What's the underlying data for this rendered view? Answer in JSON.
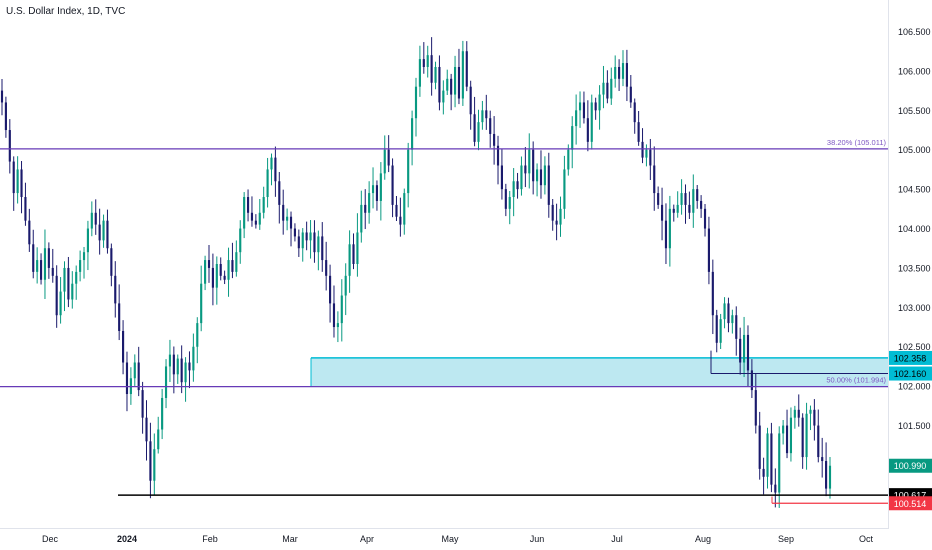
{
  "title": "U.S. Dollar Index, 1D, TVC",
  "chart_data": {
    "type": "candlestick",
    "symbol": "U.S. Dollar Index",
    "interval": "1D",
    "source": "TVC",
    "ylim": [
      100.2,
      106.9
    ],
    "y_ticks": [
      "106.500",
      "106.000",
      "105.500",
      "105.000",
      "104.500",
      "104.000",
      "103.500",
      "103.000",
      "102.500",
      "102.000",
      "101.500"
    ],
    "x_ticks": [
      "Dec",
      "2024",
      "Feb",
      "Mar",
      "Apr",
      "May",
      "Jun",
      "Jul",
      "Aug",
      "Sep",
      "Oct"
    ],
    "colors": {
      "up": "#089981",
      "down": "#1a1a6c",
      "level_purple": "#673ab7",
      "zone_fill": "#b2e4ef",
      "zone_edge": "#00bcd4",
      "support": "#000000",
      "red_line": "#f23645",
      "last_price": "#089981"
    },
    "levels": [
      {
        "name": "38.20% (105.011)",
        "value": 105.011
      },
      {
        "name": "50.00% (101.994)",
        "value": 101.994
      }
    ],
    "zone": {
      "top": 102.358,
      "bottom": 101.994,
      "top_label": "102.358"
    },
    "horizontal_lines": [
      {
        "label": "102.160",
        "value": 102.16
      },
      {
        "label": "100.617",
        "value": 100.617
      },
      {
        "label": "100.514",
        "value": 100.514
      }
    ],
    "last_price": {
      "label": "100.990",
      "value": 100.99
    },
    "closes": [
      105.6,
      105.25,
      104.85,
      104.45,
      104.75,
      104.4,
      104.1,
      103.8,
      103.45,
      103.6,
      103.35,
      103.75,
      103.5,
      103.4,
      102.9,
      103.2,
      103.5,
      103.1,
      103.3,
      103.45,
      103.6,
      103.7,
      104.0,
      104.2,
      104.05,
      103.85,
      104.1,
      103.75,
      103.4,
      103.05,
      102.7,
      102.3,
      101.9,
      102.1,
      102.3,
      101.95,
      101.6,
      101.3,
      100.8,
      101.2,
      101.45,
      101.85,
      102.25,
      102.4,
      102.15,
      102.35,
      102.05,
      102.3,
      102.2,
      102.5,
      102.8,
      103.3,
      103.6,
      103.5,
      103.25,
      103.55,
      103.4,
      103.35,
      103.6,
      103.45,
      103.7,
      104.0,
      104.4,
      104.2,
      104.1,
      104.05,
      104.2,
      104.4,
      104.75,
      104.9,
      104.6,
      104.3,
      104.1,
      104.15,
      104.0,
      103.9,
      103.75,
      103.95,
      103.85,
      103.95,
      103.7,
      103.9,
      103.6,
      103.4,
      103.05,
      102.75,
      102.8,
      103.15,
      103.4,
      103.8,
      103.55,
      103.95,
      104.3,
      104.2,
      104.45,
      104.55,
      104.35,
      104.7,
      105.0,
      104.8,
      104.3,
      104.15,
      104.05,
      104.45,
      105.0,
      105.4,
      105.8,
      106.15,
      106.05,
      106.2,
      105.85,
      106.05,
      105.6,
      105.75,
      105.9,
      105.7,
      106.05,
      105.65,
      106.25,
      105.8,
      105.45,
      105.1,
      105.35,
      105.5,
      105.4,
      105.2,
      105.05,
      104.8,
      104.5,
      104.25,
      104.4,
      104.6,
      104.5,
      104.8,
      104.7,
      105.0,
      104.6,
      104.75,
      104.55,
      104.8,
      104.3,
      104.1,
      104.05,
      104.25,
      104.75,
      105.0,
      105.3,
      105.5,
      105.6,
      105.4,
      105.1,
      105.6,
      105.5,
      105.7,
      105.85,
      105.65,
      105.9,
      106.05,
      105.9,
      106.1,
      105.8,
      105.6,
      105.35,
      105.1,
      104.9,
      105.0,
      104.8,
      104.45,
      104.3,
      104.1,
      103.75,
      104.25,
      104.2,
      104.3,
      104.45,
      104.3,
      104.2,
      104.5,
      104.35,
      104.25,
      104.0,
      103.45,
      102.9,
      102.55,
      102.85,
      103.05,
      102.8,
      102.9,
      102.6,
      102.3,
      102.65,
      102.2,
      101.95,
      101.5,
      100.95,
      100.85,
      101.4,
      100.75,
      100.65,
      101.4,
      101.5,
      101.15,
      101.6,
      101.7,
      101.6,
      101.1,
      101.65,
      101.7,
      101.5,
      101.1,
      101.05,
      100.7,
      100.99
    ]
  }
}
